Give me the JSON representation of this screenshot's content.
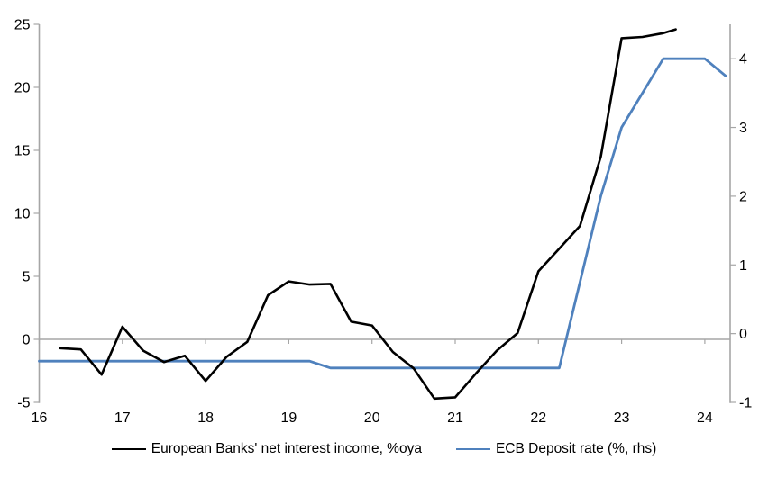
{
  "chart_data": {
    "type": "line",
    "title": "",
    "x_axis": {
      "min": 16,
      "max": 24.31,
      "ticks": [
        16,
        17,
        18,
        19,
        20,
        21,
        22,
        23,
        24
      ]
    },
    "left_axis": {
      "min": -5,
      "max": 25,
      "ticks": [
        25,
        20,
        15,
        10,
        5,
        0,
        -5
      ]
    },
    "right_axis": {
      "min": -1,
      "max": 4.5,
      "ticks": [
        4,
        3,
        2,
        1,
        0,
        -1
      ]
    },
    "grid": "zero-line-only",
    "legend_position": "bottom",
    "series": [
      {
        "name": "European Banks' net interest income, %oya",
        "axis": "left",
        "color": "#000000",
        "x": [
          16.25,
          16.5,
          16.75,
          17.0,
          17.25,
          17.5,
          17.75,
          18.0,
          18.25,
          18.5,
          18.75,
          19.0,
          19.25,
          19.5,
          19.75,
          20.0,
          20.25,
          20.5,
          20.75,
          21.0,
          21.25,
          21.5,
          21.75,
          22.0,
          22.25,
          22.5,
          22.75,
          23.0,
          23.25,
          23.5,
          23.65
        ],
        "values": [
          -0.7,
          -0.8,
          -2.8,
          1.0,
          -0.9,
          -1.8,
          -1.3,
          -3.3,
          -1.4,
          -0.2,
          3.5,
          4.6,
          4.35,
          4.4,
          1.4,
          1.1,
          -1.0,
          -2.3,
          -4.7,
          -4.6,
          -2.7,
          -0.9,
          0.5,
          5.4,
          7.2,
          9.0,
          14.5,
          23.9,
          24.0,
          24.3,
          24.6
        ]
      },
      {
        "name": "ECB Deposit rate (%, rhs)",
        "axis": "right",
        "color": "#4f81bd",
        "x": [
          16.0,
          19.25,
          19.5,
          22.25,
          22.5,
          22.75,
          23.0,
          23.25,
          23.5,
          24.0,
          24.25
        ],
        "values": [
          -0.4,
          -0.4,
          -0.5,
          -0.5,
          0.75,
          2.0,
          3.0,
          3.5,
          4.0,
          4.0,
          3.75
        ]
      }
    ]
  },
  "colors": {
    "axis": "#a6a6a6",
    "text": "#000000"
  }
}
